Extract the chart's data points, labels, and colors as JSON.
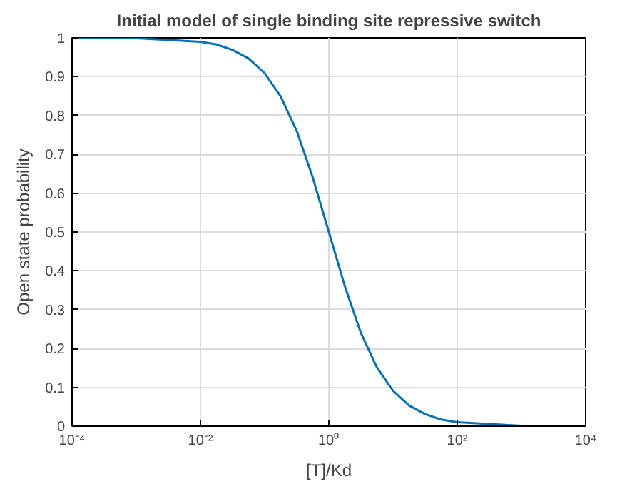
{
  "chart_data": {
    "type": "line",
    "title": "Initial model of single binding site repressive switch",
    "xlabel": "[T]/Kd",
    "ylabel": "Open state probability",
    "x": [
      0.0001,
      0.001,
      0.01,
      0.0178,
      0.0316,
      0.0562,
      0.1,
      0.178,
      0.316,
      0.562,
      1,
      1.78,
      3.16,
      5.62,
      10,
      17.8,
      31.6,
      56.2,
      100,
      1000,
      10000
    ],
    "series": [
      {
        "color": "#0072bd",
        "values": [
          1.0,
          0.999,
          0.99,
          0.983,
          0.969,
          0.947,
          0.909,
          0.849,
          0.76,
          0.64,
          0.5,
          0.36,
          0.24,
          0.151,
          0.091,
          0.053,
          0.031,
          0.017,
          0.01,
          0.001,
          0.0
        ]
      }
    ],
    "log": "x",
    "xlim": [
      0.0001,
      10000
    ],
    "ylim": [
      0,
      1
    ],
    "xticks": [
      {
        "value": 0.0001,
        "label": "10⁻⁴"
      },
      {
        "value": 0.01,
        "label": "10⁻²"
      },
      {
        "value": 1,
        "label": "10⁰"
      },
      {
        "value": 100,
        "label": "10²"
      },
      {
        "value": 10000,
        "label": "10⁴"
      }
    ],
    "yticks": [
      0,
      0.1,
      0.2,
      0.3,
      0.4,
      0.5,
      0.6,
      0.7,
      0.8,
      0.9,
      1
    ],
    "grid": true,
    "line_style": "solid"
  }
}
